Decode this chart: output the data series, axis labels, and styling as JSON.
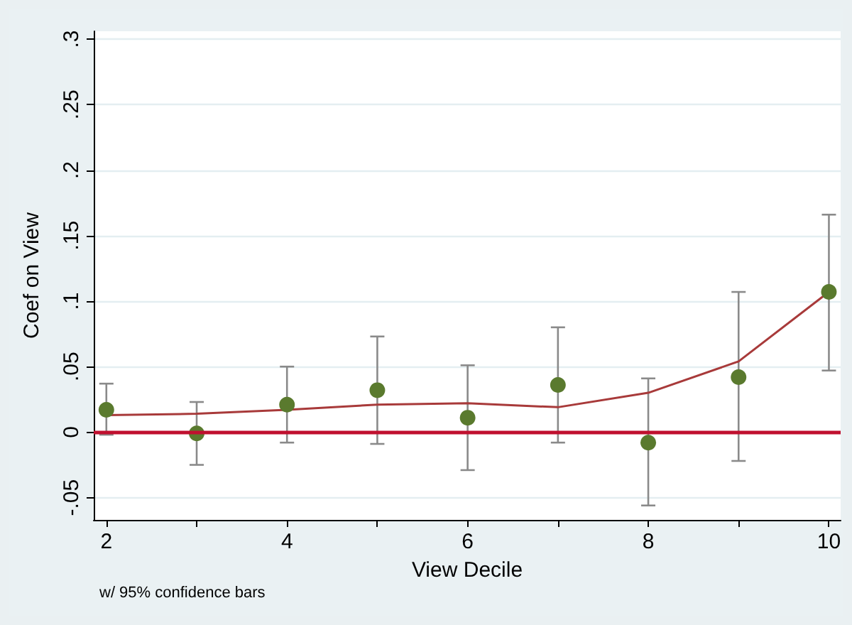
{
  "chart_data": {
    "type": "scatter",
    "xlabel": "View Decile",
    "ylabel": "Coef on View",
    "annotations": [
      "w/ 95% confidence bars"
    ],
    "xlim": [
      1.86,
      10.13
    ],
    "ylim": [
      -0.067,
      0.306
    ],
    "xticks": [
      2,
      {
        "value": 3,
        "label": null
      },
      4,
      {
        "value": 5,
        "label": null
      },
      6,
      {
        "value": 7,
        "label": null
      },
      8,
      {
        "value": 9,
        "label": null
      },
      10
    ],
    "yticks": [
      {
        "value": -0.05,
        "label": "-.05"
      },
      0,
      {
        "value": 0.05,
        "label": ".05"
      },
      {
        "value": 0.1,
        "label": ".1"
      },
      {
        "value": 0.15,
        "label": ".15"
      },
      {
        "value": 0.2,
        "label": ".2"
      },
      {
        "value": 0.25,
        "label": ".25"
      },
      {
        "value": 0.3,
        "label": ".3"
      }
    ],
    "grid": "y",
    "series": [
      {
        "type": "line",
        "color": "#a83a3a",
        "marker": "none",
        "line_style": "solid",
        "x": [
          2,
          3,
          4,
          5,
          6,
          7,
          8,
          9,
          10
        ],
        "values": [
          0.013,
          0.014,
          0.017,
          0.021,
          0.022,
          0.019,
          0.03,
          0.054,
          0.107
        ]
      },
      {
        "color": "#5a7a2e",
        "marker": "circle",
        "x": [
          2,
          3,
          4,
          5,
          6,
          7,
          8,
          9,
          10
        ],
        "values": [
          0.017,
          -0.001,
          0.021,
          0.032,
          0.011,
          0.036,
          -0.008,
          0.042,
          0.107
        ],
        "errors": [
          [
            -0.002,
            0.037
          ],
          [
            -0.025,
            0.023
          ],
          [
            -0.008,
            0.05
          ],
          [
            -0.009,
            0.073
          ],
          [
            -0.029,
            0.051
          ],
          [
            -0.008,
            0.08
          ],
          [
            -0.056,
            0.041
          ],
          [
            -0.022,
            0.107
          ],
          [
            0.047,
            0.166
          ]
        ]
      }
    ],
    "ref_lines": [
      {
        "axis": "y",
        "value": 0,
        "color": "#c0102f",
        "line_style": "solid"
      }
    ]
  }
}
